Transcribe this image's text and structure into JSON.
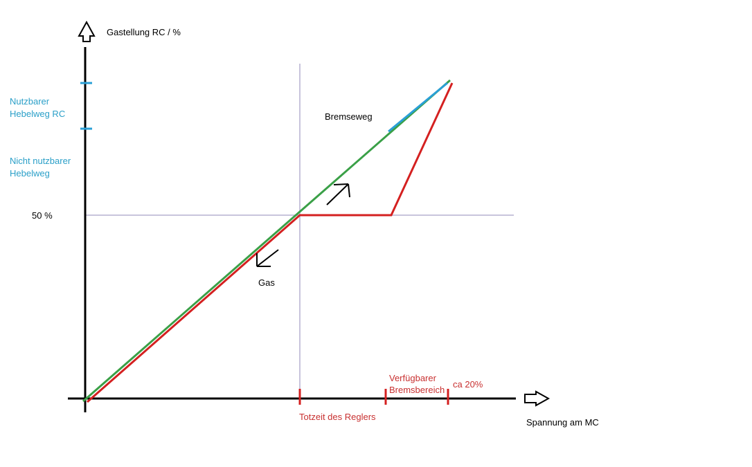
{
  "labels": {
    "y_axis": "Gastellung RC / %",
    "x_axis": "Spannung am MC",
    "fifty_percent": "50 %",
    "nutzbarer_line1": "Nutzbarer",
    "nutzbarer_line2": "Hebelweg RC",
    "nicht_line1": "Nicht nutzbarer",
    "nicht_line2": "Hebelweg",
    "bremseweg": "Bremseweg",
    "gas": "Gas",
    "totzeit": "Totzeit des Reglers",
    "verfuegbarer_line1": "Verfügbarer",
    "verfuegbarer_line2": "Bremsbereich",
    "ca20": "ca 20%"
  },
  "colors": {
    "axis": "#000000",
    "guide": "#c8c4dc",
    "red": "#d42020",
    "green": "#3aa047",
    "blue": "#2a9fd6",
    "cyan_text": "#2a9fc8",
    "red_text": "#c83030"
  }
}
